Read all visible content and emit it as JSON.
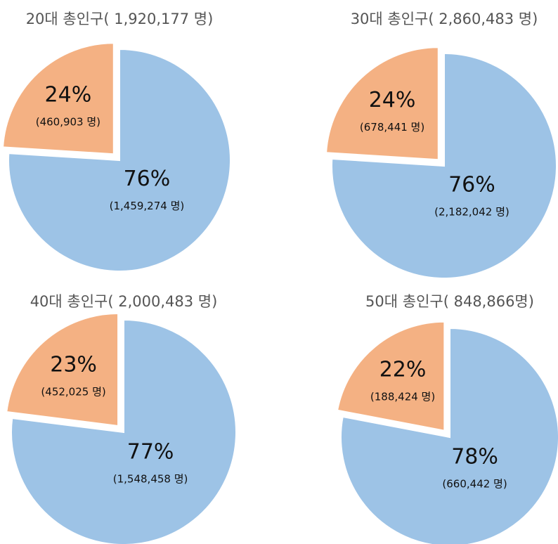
{
  "chart_data": [
    {
      "type": "pie",
      "title": "20대 총인구( 1,920,177 명)",
      "values": [
        76,
        24
      ],
      "value_labels": [
        "76%",
        "24%"
      ],
      "count_labels": [
        "(1,459,274 명)",
        "(460,903 명)"
      ],
      "colors": [
        "#9dc3e6",
        "#f4b183"
      ]
    },
    {
      "type": "pie",
      "title": "30대 총인구( 2,860,483 명)",
      "values": [
        76,
        24
      ],
      "value_labels": [
        "76%",
        "24%"
      ],
      "count_labels": [
        "(2,182,042 명)",
        "(678,441 명)"
      ],
      "colors": [
        "#9dc3e6",
        "#f4b183"
      ]
    },
    {
      "type": "pie",
      "title": "40대 총인구( 2,000,483 명)",
      "values": [
        77,
        23
      ],
      "value_labels": [
        "77%",
        "23%"
      ],
      "count_labels": [
        "(1,548,458  명)",
        "(452,025  명)"
      ],
      "colors": [
        "#9dc3e6",
        "#f4b183"
      ]
    },
    {
      "type": "pie",
      "title": "50대 총인구( 848,866명)",
      "values": [
        78,
        22
      ],
      "value_labels": [
        "78%",
        "22%"
      ],
      "count_labels": [
        "(660,442 명)",
        "(188,424 명)"
      ],
      "colors": [
        "#9dc3e6",
        "#f4b183"
      ]
    }
  ]
}
